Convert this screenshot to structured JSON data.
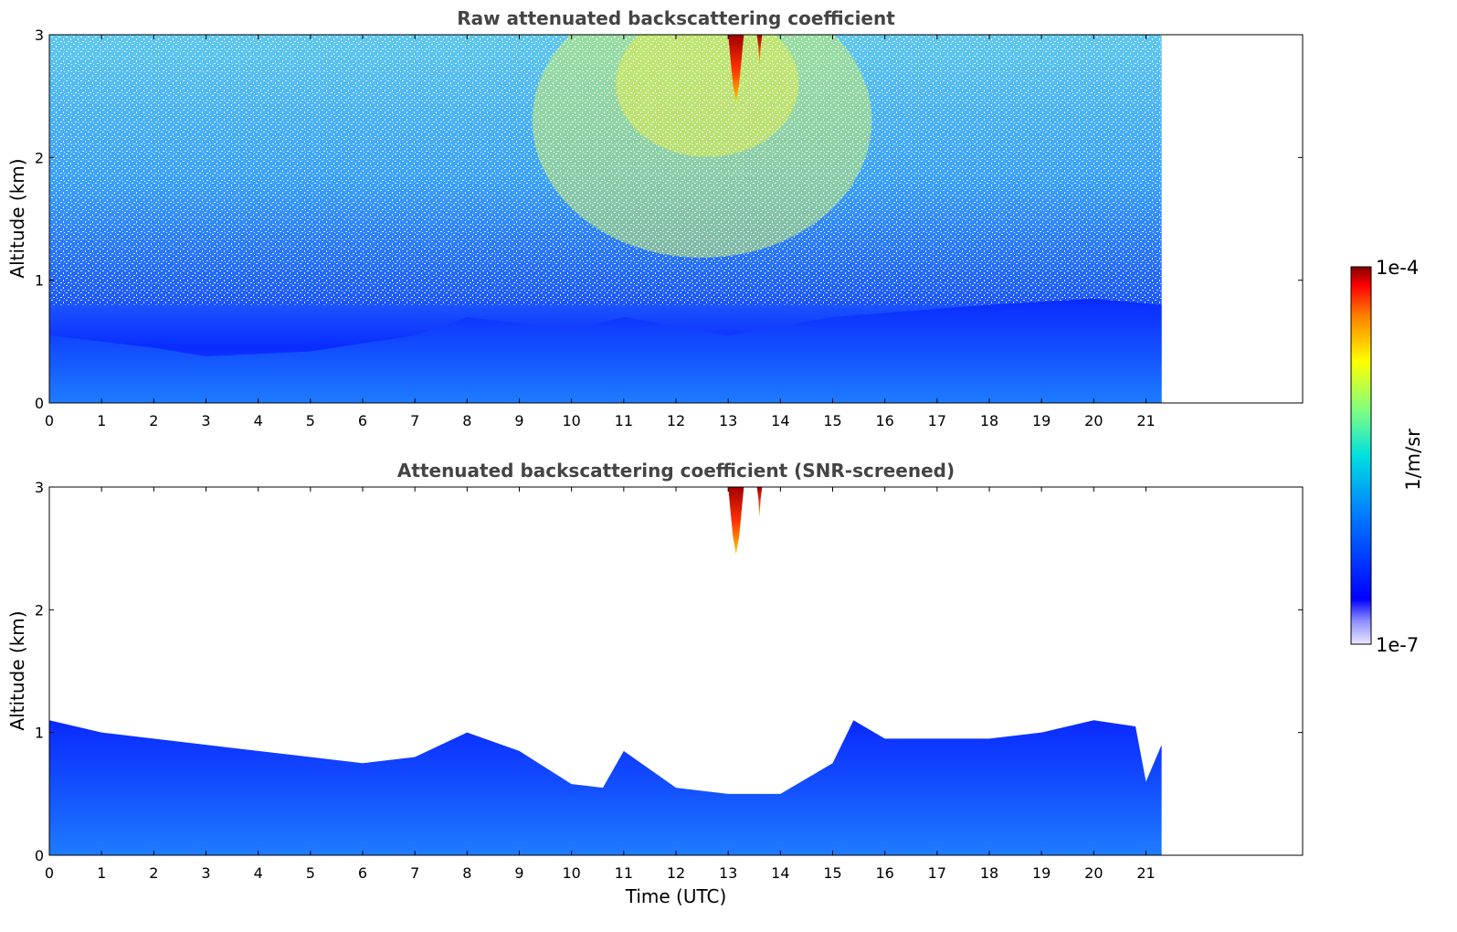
{
  "chart_data": [
    {
      "type": "heatmap",
      "title": "Raw attenuated backscattering coefficient",
      "xlabel": "",
      "ylabel": "Altitude (km)",
      "xlim": [
        0,
        24
      ],
      "ylim": [
        0,
        3
      ],
      "x_ticks": [
        "0",
        "1",
        "2",
        "3",
        "4",
        "5",
        "6",
        "7",
        "8",
        "9",
        "10",
        "11",
        "12",
        "13",
        "14",
        "15",
        "16",
        "17",
        "18",
        "19",
        "20",
        "21"
      ],
      "y_ticks": [
        "0",
        "1",
        "2",
        "3"
      ],
      "data_end_time": 21.3,
      "boundary_layer_top_km": [
        {
          "t": 0,
          "h": 0.55
        },
        {
          "t": 2,
          "h": 0.45
        },
        {
          "t": 3,
          "h": 0.38
        },
        {
          "t": 5,
          "h": 0.42
        },
        {
          "t": 7,
          "h": 0.55
        },
        {
          "t": 8,
          "h": 0.7
        },
        {
          "t": 10,
          "h": 0.6
        },
        {
          "t": 11,
          "h": 0.7
        },
        {
          "t": 13,
          "h": 0.55
        },
        {
          "t": 15,
          "h": 0.7
        },
        {
          "t": 18,
          "h": 0.8
        },
        {
          "t": 20,
          "h": 0.85
        },
        {
          "t": 21.3,
          "h": 0.8
        }
      ],
      "features": [
        {
          "t_start": 13.0,
          "t_end": 13.3,
          "h_bottom": 2.45,
          "h_top": 3.0,
          "level": "1e-4"
        },
        {
          "t_start": 13.55,
          "t_end": 13.65,
          "h_bottom": 2.75,
          "h_top": 3.0,
          "level": "1e-4"
        }
      ],
      "colorbar": {
        "min": "1e-7",
        "max": "1e-4",
        "label": "1/m/sr",
        "colormap": "jet",
        "scale": "log"
      }
    },
    {
      "type": "heatmap",
      "title": "Attenuated backscattering coefficient (SNR-screened)",
      "xlabel": "Time (UTC)",
      "ylabel": "Altitude (km)",
      "xlim": [
        0,
        24
      ],
      "ylim": [
        0,
        3
      ],
      "x_ticks": [
        "0",
        "1",
        "2",
        "3",
        "4",
        "5",
        "6",
        "7",
        "8",
        "9",
        "10",
        "11",
        "12",
        "13",
        "14",
        "15",
        "16",
        "17",
        "18",
        "19",
        "20",
        "21"
      ],
      "y_ticks": [
        "0",
        "1",
        "2",
        "3"
      ],
      "data_end_time": 21.3,
      "signal_top_km": [
        {
          "t": 0,
          "h": 1.1
        },
        {
          "t": 1,
          "h": 1.0
        },
        {
          "t": 2,
          "h": 0.95
        },
        {
          "t": 3,
          "h": 0.9
        },
        {
          "t": 4,
          "h": 0.85
        },
        {
          "t": 5,
          "h": 0.8
        },
        {
          "t": 6,
          "h": 0.75
        },
        {
          "t": 7,
          "h": 0.8
        },
        {
          "t": 8,
          "h": 1.0
        },
        {
          "t": 9,
          "h": 0.85
        },
        {
          "t": 10,
          "h": 0.58
        },
        {
          "t": 10.6,
          "h": 0.55
        },
        {
          "t": 11,
          "h": 0.85
        },
        {
          "t": 11.5,
          "h": 0.7
        },
        {
          "t": 12,
          "h": 0.55
        },
        {
          "t": 13,
          "h": 0.5
        },
        {
          "t": 14,
          "h": 0.5
        },
        {
          "t": 15,
          "h": 0.75
        },
        {
          "t": 15.4,
          "h": 1.1
        },
        {
          "t": 16,
          "h": 0.95
        },
        {
          "t": 17,
          "h": 0.95
        },
        {
          "t": 18,
          "h": 0.95
        },
        {
          "t": 19,
          "h": 1.0
        },
        {
          "t": 20,
          "h": 1.1
        },
        {
          "t": 20.8,
          "h": 1.05
        },
        {
          "t": 21.0,
          "h": 0.6
        },
        {
          "t": 21.3,
          "h": 0.9
        }
      ],
      "features": [
        {
          "t_start": 13.0,
          "t_end": 13.3,
          "h_bottom": 2.45,
          "h_top": 3.0,
          "level": "1e-4"
        },
        {
          "t_start": 13.55,
          "t_end": 13.65,
          "h_bottom": 2.75,
          "h_top": 3.0,
          "level": "1e-4"
        }
      ],
      "colorbar": {
        "min": "1e-7",
        "max": "1e-4",
        "label": "1/m/sr",
        "colormap": "jet",
        "scale": "log"
      }
    }
  ],
  "colorbar": {
    "min_label": "1e-7",
    "max_label": "1e-4",
    "label": "1/m/sr"
  }
}
